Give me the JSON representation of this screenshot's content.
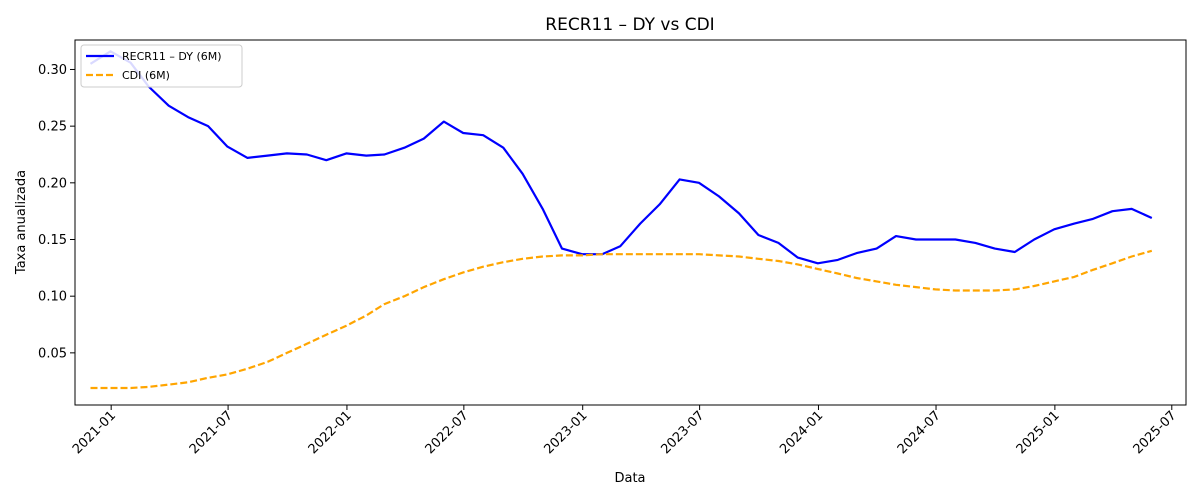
{
  "chart_data": {
    "type": "line",
    "title": "RECR11 – DY vs CDI",
    "xlabel": "Data",
    "ylabel": "Taxa anualizada",
    "x_ticks": [
      "2021-01",
      "2021-07",
      "2022-01",
      "2022-07",
      "2023-01",
      "2023-07",
      "2024-01",
      "2024-07",
      "2025-01",
      "2025-07"
    ],
    "y_ticks": [
      "0.05",
      "0.10",
      "0.15",
      "0.20",
      "0.25",
      "0.30"
    ],
    "xlim": [
      "2020-11-06",
      "2025-07-23"
    ],
    "ylim": [
      0.004,
      0.326
    ],
    "grid": false,
    "legend_position": "top-left",
    "x": [
      "2020-11-30",
      "2020-12-31",
      "2021-01-31",
      "2021-02-28",
      "2021-03-31",
      "2021-04-30",
      "2021-05-31",
      "2021-06-30",
      "2021-07-31",
      "2021-08-31",
      "2021-09-30",
      "2021-10-31",
      "2021-11-30",
      "2021-12-31",
      "2022-01-31",
      "2022-02-28",
      "2022-03-31",
      "2022-04-30",
      "2022-05-31",
      "2022-06-30",
      "2022-07-31",
      "2022-08-31",
      "2022-09-30",
      "2022-10-31",
      "2022-11-30",
      "2022-12-31",
      "2023-01-31",
      "2023-02-28",
      "2023-03-31",
      "2023-04-30",
      "2023-05-31",
      "2023-06-30",
      "2023-07-31",
      "2023-08-31",
      "2023-09-30",
      "2023-10-31",
      "2023-11-30",
      "2023-12-31",
      "2024-01-31",
      "2024-02-29",
      "2024-03-31",
      "2024-04-30",
      "2024-05-31",
      "2024-06-30",
      "2024-07-31",
      "2024-08-31",
      "2024-09-30",
      "2024-10-31",
      "2024-11-30",
      "2024-12-31",
      "2025-01-31",
      "2025-02-28",
      "2025-03-31",
      "2025-04-30",
      "2025-05-31"
    ],
    "series": [
      {
        "name": "RECR11 – DY (6M)",
        "color": "#0000ff",
        "style": "solid",
        "values": [
          0.305,
          0.316,
          0.306,
          0.285,
          0.268,
          0.258,
          0.25,
          0.232,
          0.222,
          0.224,
          0.226,
          0.225,
          0.22,
          0.226,
          0.224,
          0.225,
          0.231,
          0.239,
          0.254,
          0.244,
          0.242,
          0.231,
          0.208,
          0.177,
          0.142,
          0.137,
          0.137,
          0.144,
          0.164,
          0.181,
          0.203,
          0.2,
          0.188,
          0.173,
          0.154,
          0.147,
          0.134,
          0.129,
          0.132,
          0.138,
          0.142,
          0.153,
          0.15,
          0.15,
          0.15,
          0.147,
          0.142,
          0.139,
          0.15,
          0.159,
          0.164,
          0.168,
          0.175,
          0.177,
          0.169
        ]
      },
      {
        "name": "CDI (6M)",
        "color": "#ffa500",
        "style": "dashed",
        "values": [
          0.019,
          0.019,
          0.019,
          0.02,
          0.022,
          0.024,
          0.028,
          0.031,
          0.036,
          0.042,
          0.05,
          0.058,
          0.066,
          0.074,
          0.083,
          0.093,
          0.1,
          0.108,
          0.115,
          0.121,
          0.126,
          0.13,
          0.133,
          0.135,
          0.136,
          0.136,
          0.137,
          0.137,
          0.137,
          0.137,
          0.137,
          0.137,
          0.136,
          0.135,
          0.133,
          0.131,
          0.128,
          0.124,
          0.12,
          0.116,
          0.113,
          0.11,
          0.108,
          0.106,
          0.105,
          0.105,
          0.105,
          0.106,
          0.109,
          0.113,
          0.117,
          0.123,
          0.129,
          0.135,
          0.14
        ]
      }
    ]
  }
}
